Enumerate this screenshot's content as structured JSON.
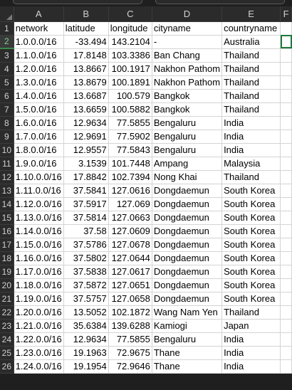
{
  "columns": [
    "A",
    "B",
    "C",
    "D",
    "E",
    "F"
  ],
  "rows": [
    {
      "n": "1",
      "a": "network",
      "b": "latitude",
      "c": "longitude",
      "d": "cityname",
      "e": "countryname"
    },
    {
      "n": "2",
      "a": "1.0.0.0/16",
      "b": "-33.494",
      "c": "143.2104",
      "d": "-",
      "e": "Australia"
    },
    {
      "n": "3",
      "a": "1.1.0.0/16",
      "b": "17.8148",
      "c": "103.3386",
      "d": "Ban Chang",
      "e": "Thailand"
    },
    {
      "n": "4",
      "a": "1.2.0.0/16",
      "b": "13.8667",
      "c": "100.1917",
      "d": "Nakhon Pathom",
      "e": "Thailand"
    },
    {
      "n": "5",
      "a": "1.3.0.0/16",
      "b": "13.8679",
      "c": "100.1891",
      "d": "Nakhon Pathom",
      "e": "Thailand"
    },
    {
      "n": "6",
      "a": "1.4.0.0/16",
      "b": "13.6687",
      "c": "100.579",
      "d": "Bangkok",
      "e": "Thailand"
    },
    {
      "n": "7",
      "a": "1.5.0.0/16",
      "b": "13.6659",
      "c": "100.5882",
      "d": "Bangkok",
      "e": "Thailand"
    },
    {
      "n": "8",
      "a": "1.6.0.0/16",
      "b": "12.9634",
      "c": "77.5855",
      "d": "Bengaluru",
      "e": "India"
    },
    {
      "n": "9",
      "a": "1.7.0.0/16",
      "b": "12.9691",
      "c": "77.5902",
      "d": "Bengaluru",
      "e": "India"
    },
    {
      "n": "10",
      "a": "1.8.0.0/16",
      "b": "12.9557",
      "c": "77.5843",
      "d": "Bengaluru",
      "e": "India"
    },
    {
      "n": "11",
      "a": "1.9.0.0/16",
      "b": "3.1539",
      "c": "101.7448",
      "d": "Ampang",
      "e": "Malaysia"
    },
    {
      "n": "12",
      "a": "1.10.0.0/16",
      "b": "17.8842",
      "c": "102.7394",
      "d": "Nong Khai",
      "e": "Thailand"
    },
    {
      "n": "13",
      "a": "1.11.0.0/16",
      "b": "37.5841",
      "c": "127.0616",
      "d": "Dongdaemun",
      "e": "South Korea"
    },
    {
      "n": "14",
      "a": "1.12.0.0/16",
      "b": "37.5917",
      "c": "127.069",
      "d": "Dongdaemun",
      "e": "South Korea"
    },
    {
      "n": "15",
      "a": "1.13.0.0/16",
      "b": "37.5814",
      "c": "127.0663",
      "d": "Dongdaemun",
      "e": "South Korea"
    },
    {
      "n": "16",
      "a": "1.14.0.0/16",
      "b": "37.58",
      "c": "127.0609",
      "d": "Dongdaemun",
      "e": "South Korea"
    },
    {
      "n": "17",
      "a": "1.15.0.0/16",
      "b": "37.5786",
      "c": "127.0678",
      "d": "Dongdaemun",
      "e": "South Korea"
    },
    {
      "n": "18",
      "a": "1.16.0.0/16",
      "b": "37.5802",
      "c": "127.0644",
      "d": "Dongdaemun",
      "e": "South Korea"
    },
    {
      "n": "19",
      "a": "1.17.0.0/16",
      "b": "37.5838",
      "c": "127.0617",
      "d": "Dongdaemun",
      "e": "South Korea"
    },
    {
      "n": "20",
      "a": "1.18.0.0/16",
      "b": "37.5872",
      "c": "127.0651",
      "d": "Dongdaemun",
      "e": "South Korea"
    },
    {
      "n": "21",
      "a": "1.19.0.0/16",
      "b": "37.5757",
      "c": "127.0658",
      "d": "Dongdaemun",
      "e": "South Korea"
    },
    {
      "n": "22",
      "a": "1.20.0.0/16",
      "b": "13.5052",
      "c": "102.1872",
      "d": "Wang Nam Yen",
      "e": "Thailand"
    },
    {
      "n": "23",
      "a": "1.21.0.0/16",
      "b": "35.6384",
      "c": "139.6288",
      "d": "Kamiogi",
      "e": "Japan"
    },
    {
      "n": "24",
      "a": "1.22.0.0/16",
      "b": "12.9634",
      "c": "77.5855",
      "d": "Bengaluru",
      "e": "India"
    },
    {
      "n": "25",
      "a": "1.23.0.0/16",
      "b": "19.1963",
      "c": "72.9675",
      "d": "Thane",
      "e": "India"
    },
    {
      "n": "26",
      "a": "1.24.0.0/16",
      "b": "19.1954",
      "c": "72.9646",
      "d": "Thane",
      "e": "India"
    }
  ],
  "selection": {
    "cell": "F2"
  },
  "colors": {
    "selection": "#1e7a3c",
    "header_bg": "#2b2b2b",
    "gridline": "#d4d4d4"
  }
}
